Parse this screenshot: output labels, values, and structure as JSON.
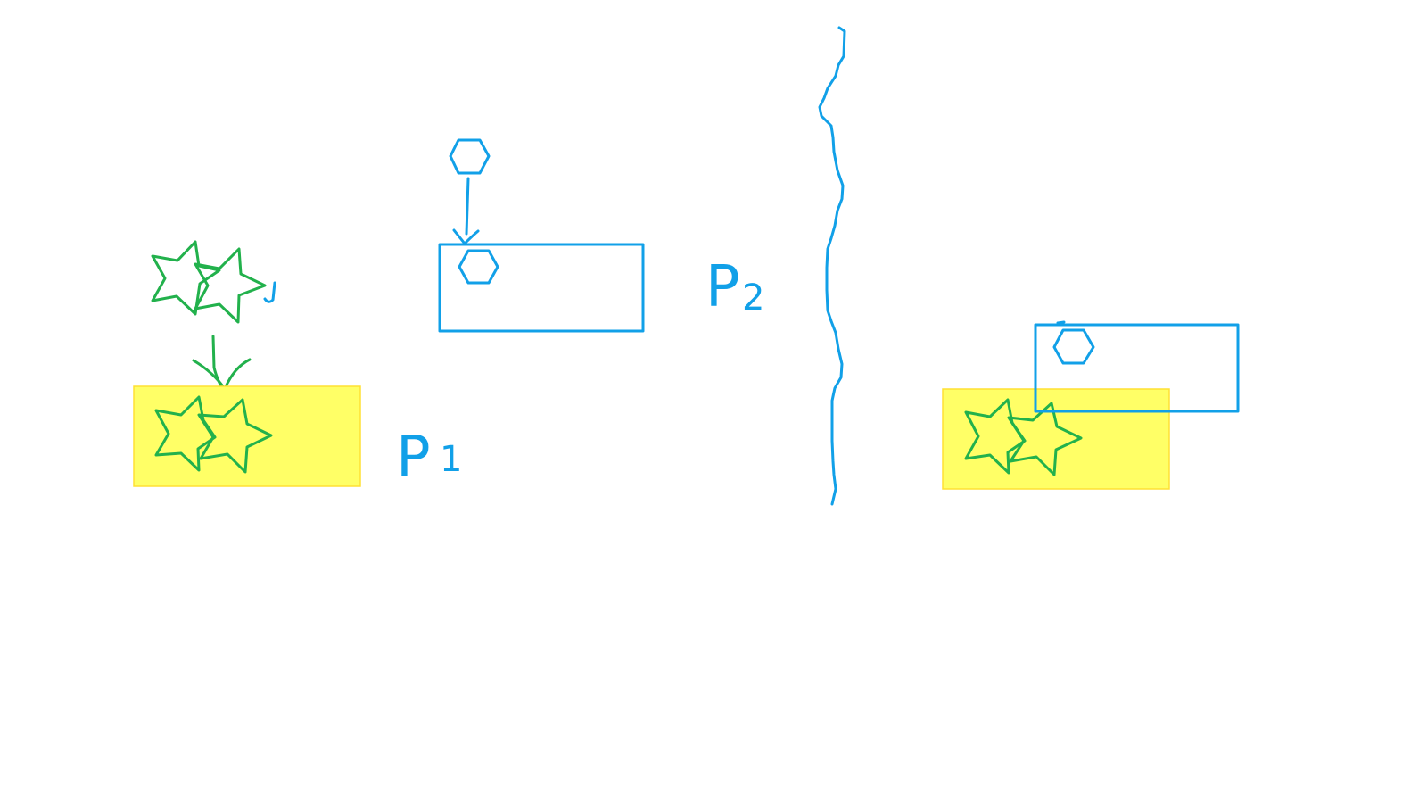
{
  "canvas": {
    "background": "#ffffff"
  },
  "colors": {
    "green_ink": "#22b14c",
    "blue_ink": "#11a0e8",
    "highlight": "#ffff66"
  },
  "labels": {
    "p1_letter": "P",
    "p1_index": "1",
    "p2_letter": "P",
    "p2_index": "2"
  },
  "icons": {
    "star": "star-icon",
    "hexagon": "hexagon-icon"
  }
}
